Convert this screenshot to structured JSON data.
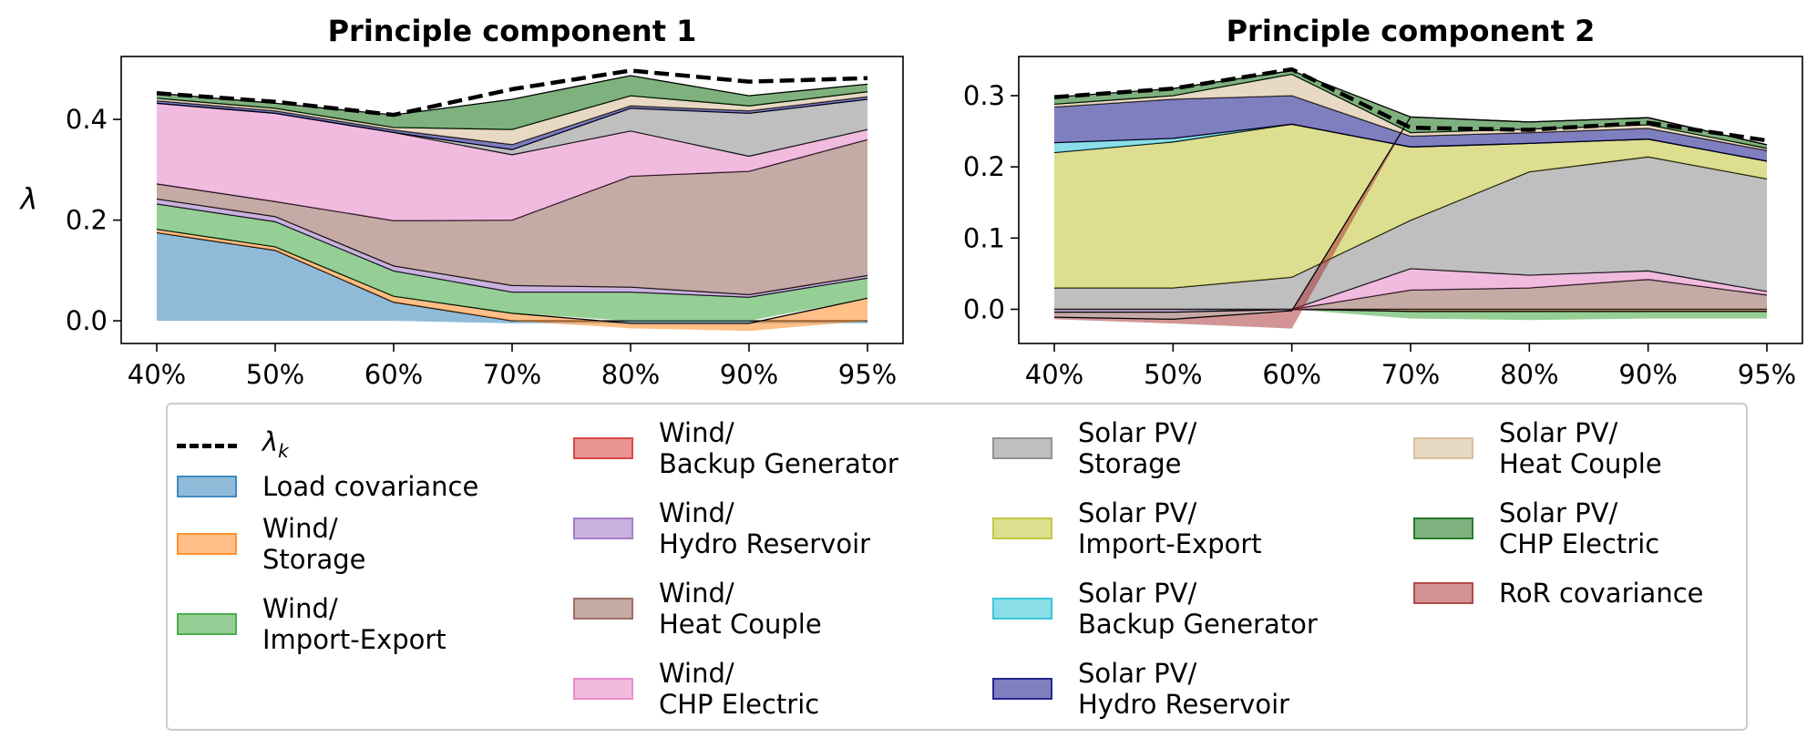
{
  "chart_data": [
    {
      "type": "area",
      "stacking": "stacked (negatives stack below zero)",
      "title": "Principle component 1",
      "xlabel": "",
      "ylabel": "λ",
      "categories": [
        "40%",
        "50%",
        "60%",
        "70%",
        "80%",
        "90%",
        "95%"
      ],
      "ylim": [
        -0.045,
        0.525
      ],
      "yticks": [
        "0.0",
        "0.2",
        "0.4"
      ],
      "ytick_values": [
        0.0,
        0.2,
        0.4
      ],
      "grid": false,
      "series": [
        {
          "name": "Load covariance",
          "values": [
            0.175,
            0.14,
            0.037,
            -0.005,
            -0.005,
            -0.005,
            -0.005
          ]
        },
        {
          "name": "Wind/ Storage",
          "values": [
            0.007,
            0.007,
            0.012,
            0.015,
            -0.01,
            -0.015,
            0.045
          ]
        },
        {
          "name": "Wind/ Import-Export",
          "values": [
            0.05,
            0.05,
            0.05,
            0.042,
            0.057,
            0.047,
            0.04
          ]
        },
        {
          "name": "Wind/ Backup Generator",
          "values": [
            0,
            0,
            0,
            0,
            0,
            0,
            0
          ]
        },
        {
          "name": "Wind/ Hydro Reservoir",
          "values": [
            0.01,
            0.01,
            0.01,
            0.013,
            0.01,
            0.005,
            0.005
          ]
        },
        {
          "name": "Wind/ Heat Couple",
          "values": [
            0.03,
            0.03,
            0.09,
            0.13,
            0.22,
            0.245,
            0.27
          ]
        },
        {
          "name": "Wind/ CHP Electric",
          "values": [
            0.16,
            0.175,
            0.175,
            0.13,
            0.09,
            0.03,
            0.02
          ]
        },
        {
          "name": "Solar PV/ Storage",
          "values": [
            0,
            0,
            0,
            0.01,
            0.045,
            0.085,
            0.06
          ]
        },
        {
          "name": "Solar PV/ Import-Export",
          "values": [
            0,
            0,
            0,
            0,
            0,
            0,
            0
          ]
        },
        {
          "name": "Solar PV/ Backup Generator",
          "values": [
            0,
            0,
            0,
            0,
            0,
            0,
            0
          ]
        },
        {
          "name": "Solar PV/ Hydro Reservoir",
          "values": [
            0.005,
            0.005,
            0.005,
            0.01,
            0.005,
            0.005,
            0.005
          ]
        },
        {
          "name": "Solar PV/ Heat Couple",
          "values": [
            0.005,
            0.005,
            0.005,
            0.03,
            0.02,
            0.01,
            0.01
          ]
        },
        {
          "name": "Solar PV/ CHP Electric",
          "values": [
            0.01,
            0.01,
            0.025,
            0.06,
            0.04,
            0.02,
            0.015
          ]
        },
        {
          "name": "RoR covariance",
          "values": [
            0,
            0,
            0,
            0,
            0,
            0,
            0
          ]
        }
      ],
      "lambda_k": {
        "name": "λ_k",
        "values": [
          0.452,
          0.435,
          0.409,
          0.46,
          0.497,
          0.475,
          0.482
        ]
      }
    },
    {
      "type": "area",
      "stacking": "stacked (negatives stack below zero)",
      "title": "Principle component 2",
      "xlabel": "",
      "ylabel": "",
      "categories": [
        "40%",
        "50%",
        "60%",
        "70%",
        "80%",
        "90%",
        "95%"
      ],
      "ylim": [
        -0.048,
        0.355
      ],
      "yticks": [
        "0.0",
        "0.1",
        "0.2",
        "0.3"
      ],
      "ytick_values": [
        0.0,
        0.1,
        0.2,
        0.3
      ],
      "grid": false,
      "series": [
        {
          "name": "Load covariance",
          "values": [
            0,
            0,
            0,
            0,
            0,
            0,
            0
          ]
        },
        {
          "name": "Wind/ Storage",
          "values": [
            0,
            0,
            0,
            -0.003,
            -0.003,
            -0.003,
            -0.003
          ]
        },
        {
          "name": "Wind/ Import-Export",
          "values": [
            0,
            0,
            0,
            -0.01,
            -0.012,
            -0.01,
            -0.01
          ]
        },
        {
          "name": "Wind/ Backup Generator",
          "values": [
            0,
            0,
            0,
            0,
            0,
            0,
            0
          ]
        },
        {
          "name": "Wind/ Hydro Reservoir",
          "values": [
            -0.004,
            -0.004,
            -0.002,
            0,
            0,
            0,
            0
          ]
        },
        {
          "name": "Wind/ Heat Couple",
          "values": [
            -0.007,
            -0.01,
            0,
            0.027,
            0.03,
            0.042,
            0.02
          ]
        },
        {
          "name": "Wind/ CHP Electric",
          "values": [
            0,
            0,
            0,
            0.03,
            0.018,
            0.012,
            0.005
          ]
        },
        {
          "name": "Solar PV/ Storage",
          "values": [
            0.03,
            0.03,
            0.045,
            0.068,
            0.145,
            0.16,
            0.158
          ]
        },
        {
          "name": "Solar PV/ Import-Export",
          "values": [
            0.19,
            0.205,
            0.215,
            0.103,
            0.04,
            0.025,
            0.025
          ]
        },
        {
          "name": "Solar PV/ Backup Generator",
          "values": [
            0.014,
            0.005,
            0,
            0,
            0,
            0,
            0
          ]
        },
        {
          "name": "Solar PV/ Hydro Reservoir",
          "values": [
            0.05,
            0.055,
            0.04,
            0.015,
            0.015,
            0.015,
            0.015
          ]
        },
        {
          "name": "Solar PV/ Heat Couple",
          "values": [
            0.004,
            0.005,
            0.03,
            0.005,
            0.005,
            0.005,
            0.003
          ]
        },
        {
          "name": "Solar PV/ CHP Electric",
          "values": [
            0.01,
            0.01,
            0.005,
            0.022,
            0.01,
            0.01,
            0.005
          ]
        },
        {
          "name": "RoR covariance",
          "values": [
            -0.003,
            -0.006,
            -0.025,
            0,
            0,
            0,
            0
          ]
        }
      ],
      "lambda_k": {
        "name": "λ_k",
        "values": [
          0.298,
          0.31,
          0.337,
          0.255,
          0.252,
          0.262,
          0.237
        ]
      }
    }
  ],
  "legend": {
    "lambda_label": "λ",
    "lambda_sub": "k",
    "items": [
      {
        "label": "Load covariance",
        "color": "#1f77b4"
      },
      {
        "label": "Wind/\nStorage",
        "color": "#ff7f0e"
      },
      {
        "label": "Wind/\nImport-Export",
        "color": "#2ca02c"
      },
      {
        "label": "Wind/\nBackup Generator",
        "color": "#d62728"
      },
      {
        "label": "Wind/\nHydro Reservoir",
        "color": "#9467bd"
      },
      {
        "label": "Wind/\nHeat Couple",
        "color": "#8c564b"
      },
      {
        "label": "Wind/\nCHP Electric",
        "color": "#e377c2"
      },
      {
        "label": "Solar PV/\nStorage",
        "color": "#7f7f7f"
      },
      {
        "label": "Solar PV/\nImport-Export",
        "color": "#bcbd22"
      },
      {
        "label": "Solar PV/\nBackup Generator",
        "color": "#17becf"
      },
      {
        "label": "Solar PV/\nHydro Reservoir",
        "color": "#000080"
      },
      {
        "label": "Solar PV/\nHeat Couple",
        "color": "#d2b48c"
      },
      {
        "label": "Solar PV/\nCHP Electric",
        "color": "#006400"
      },
      {
        "label": "RoR covariance",
        "color": "#a52a2a"
      }
    ]
  }
}
